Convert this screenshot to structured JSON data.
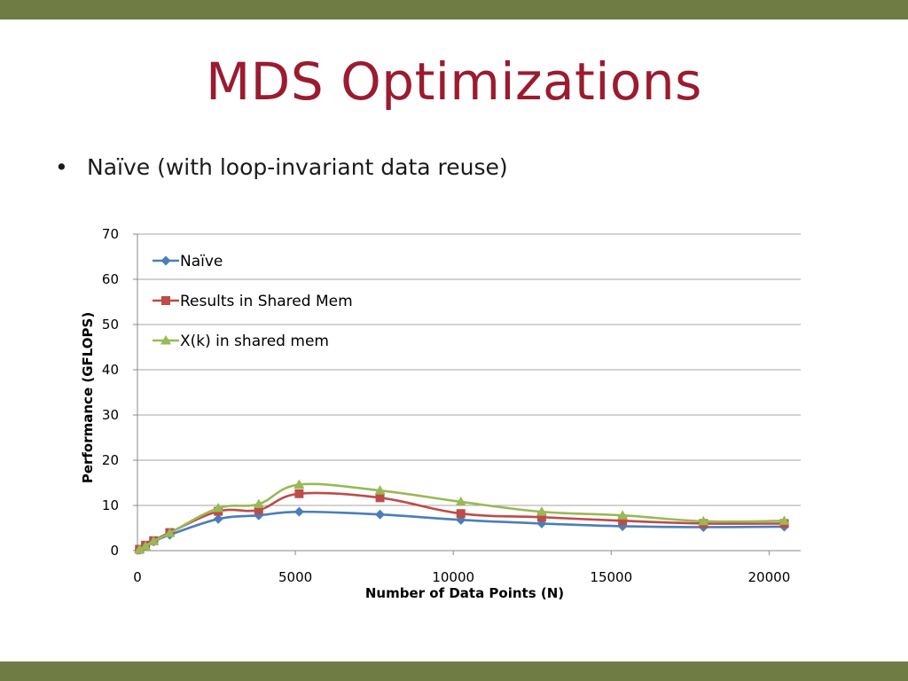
{
  "slide": {
    "title": "MDS Optimizations",
    "bullet": "Naïve (with loop-invariant data reuse)"
  },
  "chart_data": {
    "type": "line",
    "title": "",
    "xlabel": "Number of Data Points (N)",
    "ylabel": "Performance (GFLOPS)",
    "xlim": [
      0,
      21000
    ],
    "ylim": [
      0,
      70
    ],
    "xticks": [
      0,
      5000,
      10000,
      15000,
      20000
    ],
    "yticks": [
      0,
      10,
      20,
      30,
      40,
      50,
      60,
      70
    ],
    "grid": "horizontal",
    "legend_position": "top-left",
    "smooth": true,
    "series": [
      {
        "name": "Naïve",
        "marker": "diamond",
        "color": "#4a7ebb",
        "x": [
          64,
          256,
          512,
          1024,
          2560,
          3840,
          5120,
          7680,
          10240,
          12800,
          15360,
          17920,
          20480
        ],
        "y": [
          0.2,
          1.0,
          2.0,
          3.5,
          7.0,
          7.8,
          8.6,
          8.0,
          6.8,
          6.0,
          5.4,
          5.2,
          5.3
        ]
      },
      {
        "name": "Results in Shared Mem",
        "marker": "square",
        "color": "#be4b48",
        "x": [
          64,
          256,
          512,
          1024,
          2560,
          3840,
          5120,
          7680,
          10240,
          12800,
          15360,
          17920,
          20480
        ],
        "y": [
          0.3,
          1.2,
          2.2,
          4.0,
          8.7,
          9.0,
          12.6,
          11.7,
          8.2,
          7.4,
          6.6,
          6.0,
          6.0
        ]
      },
      {
        "name": "X(k) in shared mem",
        "marker": "triangle",
        "color": "#98b954",
        "x": [
          64,
          256,
          512,
          1024,
          2560,
          3840,
          5120,
          7680,
          10240,
          12800,
          15360,
          17920,
          20480
        ],
        "y": [
          0.3,
          1.0,
          2.1,
          3.9,
          9.4,
          10.3,
          14.6,
          13.3,
          10.8,
          8.6,
          7.8,
          6.5,
          6.6
        ]
      }
    ]
  }
}
